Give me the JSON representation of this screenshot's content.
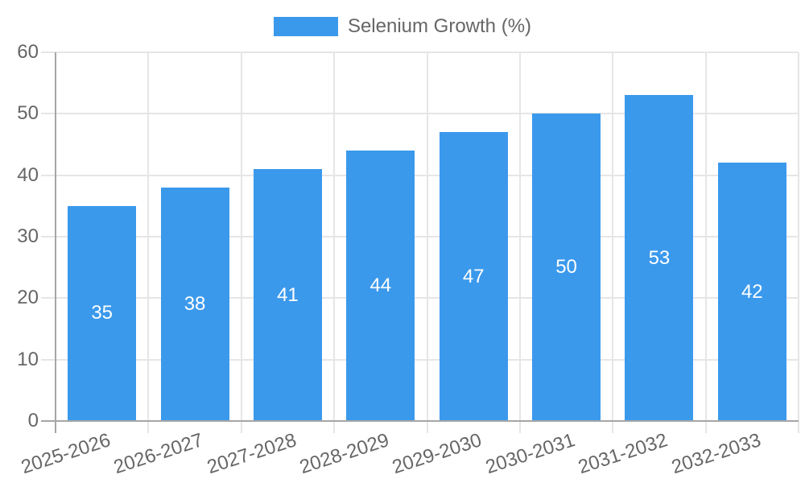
{
  "chart_data": {
    "type": "bar",
    "title": "",
    "legend": {
      "label": "Selenium Growth (%)",
      "position": "top"
    },
    "categories": [
      "2025-2026",
      "2026-2027",
      "2027-2028",
      "2028-2029",
      "2029-2030",
      "2030-2031",
      "2031-2032",
      "2032-2033"
    ],
    "series": [
      {
        "name": "Selenium Growth (%)",
        "values": [
          35,
          38,
          41,
          44,
          47,
          50,
          53,
          42
        ]
      }
    ],
    "value_labels_shown": true,
    "xlabel": "",
    "ylabel": "",
    "ylim": [
      0,
      60
    ],
    "yticks": [
      0,
      10,
      20,
      30,
      40,
      50,
      60
    ],
    "grid": true,
    "x_label_rotation_deg": -18,
    "colors": {
      "bar": "#3b99ec",
      "value_text": "#ffffff",
      "axis_text": "#666666",
      "grid_line": "#e6e6e6",
      "axis_line": "#a6a6a6"
    }
  }
}
